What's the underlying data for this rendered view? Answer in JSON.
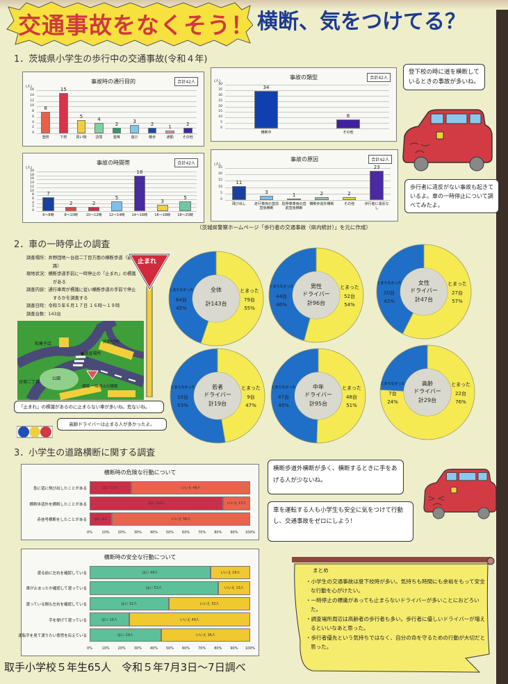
{
  "header": {
    "title": "交通事故をなくそう！",
    "subtitle": "横断、気をつけてる？"
  },
  "section1": {
    "heading": "1．茨城県小学生の歩行中の交通事故(令和４年)",
    "source": "（茨城県警察ホームページ「歩行者の交通事故（県内統計）」を元に作成）"
  },
  "section2": {
    "heading": "2．車の一時停止の調査",
    "info": [
      "調査場所：井野団地～台宿二丁目方面の横断歩道（通学路）",
      "現地状況：横断歩道手前に一時停止の「止まれ」の標識がある",
      "調査内容：通行車両が標識に従い横断歩道の手前で停止するかを調査する",
      "調査日時：令和５年６月１７日 １６時～１９時",
      "調査台数：143台"
    ],
    "sign": "止まれ",
    "map": {
      "labels": [
        "和菓子店",
        "井野団地",
        "●調査場所",
        "公園",
        "台宿二丁目",
        "標識 一時停止の標識"
      ]
    }
  },
  "section3": {
    "heading": "3．小学生の道路横断に関する調査"
  },
  "bubbles": {
    "b1": "登下校の時に道を横断しているときの事故が多いね。",
    "b2": "歩行者に違反がない事故も起きているよ。車の一時停止について調べてみたよ。",
    "b3": "「止まれ」の標識があるのに止まらない車が多いね。危ないね。",
    "b4": "高齢ドライバーは止まる人が多かったよ。",
    "b5": "横断歩道外横断が多く、横断するときに手をあげる人が少ないね。",
    "b6": "車を運転する人も小学生も安全に気をつけて行動し、交通事故をゼロにしよう！"
  },
  "summary": {
    "title": "まとめ",
    "items": [
      "・小学生の交通事故は登下校時が多い。気持ちも時間にも余裕をもって安全な行動を心がけたい。",
      "・一時停止の標識があっても止まらないドライバーが多いことにおどろいた。",
      "・調査場所周辺は高齢者の歩行者も多い。歩行者に優しいドライバーが増えるといいなあと思った。",
      "・歩行者優先という気持ちではなく、自分の命を守るための行動が大切だと思った。"
    ]
  },
  "footer": "取手小学校５年生65人　令和５年7月3日～7日調べ",
  "colors": {
    "title_red": "#cf3a3c",
    "title_blue": "#1d3b90",
    "stopped": "#f5ea52",
    "not_stopped": "#1f6fc8"
  },
  "chart_data": [
    {
      "type": "bar",
      "title": "事故時の通行目的",
      "total": "合計42人",
      "ylabel": "(人)",
      "ylim": [
        0,
        16
      ],
      "ytick": 2,
      "grid": true,
      "categories": [
        "登校",
        "下校",
        "買い物",
        "訪問",
        "塾等",
        "遊び",
        "散歩",
        "通勤",
        "その他"
      ],
      "values": [
        8,
        15,
        5,
        4,
        2,
        3,
        2,
        1,
        2
      ],
      "colors": [
        "#e8604a",
        "#d8344a",
        "#f0d040",
        "#7fd0a0",
        "#2a9a6a",
        "#7ec8ec",
        "#1a4aa8",
        "#e890b8",
        "#3a2a9a"
      ]
    },
    {
      "type": "bar",
      "title": "事故の類型",
      "total": "合計42人",
      "ylabel": "(人)",
      "ylim": [
        0,
        40
      ],
      "ytick": 5,
      "grid": true,
      "categories": [
        "横断中",
        "その他"
      ],
      "values": [
        34,
        8
      ],
      "colors": [
        "#1040b0",
        "#4020a0"
      ]
    },
    {
      "type": "bar",
      "title": "事故の時間帯",
      "total": "合計42人",
      "ylabel": "(人)",
      "ylim": [
        0,
        20
      ],
      "ytick": 2,
      "grid": true,
      "categories": [
        "6～8時",
        "8～10時",
        "10～12時",
        "12～14時",
        "14～16時",
        "16～18時",
        "18～20時"
      ],
      "values": [
        7,
        2,
        2,
        5,
        18,
        3,
        5
      ],
      "colors": [
        "#1a40a0",
        "#d84a4a",
        "#c8304a",
        "#7ec0ec",
        "#4a2aa0",
        "#f0d040",
        "#70c8a0"
      ]
    },
    {
      "type": "bar",
      "title": "事故の原因",
      "total": "合計42人",
      "ylabel": "(人)",
      "ylim": [
        0,
        25
      ],
      "ytick": 5,
      "grid": true,
      "categories": [
        "飛び出し",
        "走行車両の直前直後横断",
        "駐停車車両の直前直後横断",
        "横断歩道外横断",
        "その他",
        "歩行者に違反なし"
      ],
      "values": [
        11,
        3,
        1,
        2,
        2,
        23
      ],
      "colors": [
        "#1a40a0",
        "#7ec0ec",
        "#e86a5a",
        "#7ed0a0",
        "#f0d040",
        "#4a2aa0"
      ]
    },
    {
      "type": "pie",
      "title": "全体",
      "total": "計143台",
      "segments": [
        {
          "label": "とまった",
          "count": "79台",
          "value": 79,
          "percent": "55%"
        },
        {
          "label": "とまらなかった",
          "count": "64台",
          "value": 64,
          "percent": "45%"
        }
      ]
    },
    {
      "type": "pie",
      "title": "男性\nドライバー",
      "total": "計96台",
      "segments": [
        {
          "label": "とまった",
          "count": "52台",
          "value": 52,
          "percent": "54%"
        },
        {
          "label": "とまらなかった",
          "count": "44台",
          "value": 44,
          "percent": "46%"
        }
      ]
    },
    {
      "type": "pie",
      "title": "女性\nドライバー",
      "total": "計47台",
      "segments": [
        {
          "label": "とまった",
          "count": "27台",
          "value": 27,
          "percent": "57%"
        },
        {
          "label": "とまらなかった",
          "count": "20台",
          "value": 20,
          "percent": "43%"
        }
      ]
    },
    {
      "type": "pie",
      "title": "若者\nドライバー",
      "total": "計19台",
      "segments": [
        {
          "label": "とまった",
          "count": "9台",
          "value": 9,
          "percent": "47%"
        },
        {
          "label": "とまらなかった",
          "count": "10台",
          "value": 10,
          "percent": "53%"
        }
      ]
    },
    {
      "type": "pie",
      "title": "中年\nドライバー",
      "total": "計95台",
      "segments": [
        {
          "label": "とまった",
          "count": "48台",
          "value": 48,
          "percent": "51%"
        },
        {
          "label": "とまらなかった",
          "count": "47台",
          "value": 47,
          "percent": "49%"
        }
      ]
    },
    {
      "type": "pie",
      "title": "高齢\nドライバー",
      "total": "計29台",
      "segments": [
        {
          "label": "とまった",
          "count": "22台",
          "value": 22,
          "percent": "76%"
        },
        {
          "label": "とまらなかった",
          "count": "7台",
          "value": 7,
          "percent": "24%"
        }
      ]
    },
    {
      "type": "bar",
      "orientation": "horizontal",
      "stacked": "percent",
      "title": "横断時の危険な行動について",
      "categories": [
        "急に道に飛び出したことがある",
        "横断歩道外を横断したことがある",
        "赤信号横断をしたことがある"
      ],
      "series": [
        {
          "name": "はい",
          "values": [
            17,
            54,
            9
          ],
          "labels": [
            "はい 17人",
            "はい 54人",
            "はい 9人"
          ],
          "color": "#c8304a"
        },
        {
          "name": "いいえ",
          "values": [
            48,
            11,
            56
          ],
          "labels": [
            "いいえ 48人",
            "いいえ 11人",
            "いいえ 56人"
          ],
          "color": "#e8644c"
        }
      ],
      "xticks": [
        "0%",
        "10%",
        "20%",
        "30%",
        "40%",
        "50%",
        "60%",
        "70%",
        "80%",
        "90%",
        "100%"
      ]
    },
    {
      "type": "bar",
      "orientation": "horizontal",
      "stacked": "percent",
      "title": "横断時の安全な行動について",
      "categories": [
        "渡る前に左右を確認している",
        "車が止まったか確認して渡っている",
        "渡っている間も左右を確認している",
        "手を挙げて渡っている",
        "運転手を見て渡りたい意思を伝えている"
      ],
      "series": [
        {
          "name": "はい",
          "values": [
            49,
            52,
            32,
            16,
            29
          ],
          "labels": [
            "はい 49人",
            "はい 52人",
            "はい 32人",
            "はい 16人",
            "はい 29人"
          ],
          "color": "#5cc09a"
        },
        {
          "name": "いいえ",
          "values": [
            16,
            13,
            33,
            49,
            36
          ],
          "labels": [
            "いいえ 16人",
            "いいえ 13人",
            "いいえ 33人",
            "いいえ 49人",
            "いいえ 36人"
          ],
          "color": "#f0c830"
        }
      ],
      "xticks": [
        "0%",
        "10%",
        "20%",
        "30%",
        "40%",
        "50%",
        "60%",
        "70%",
        "80%",
        "90%",
        "100%"
      ]
    }
  ]
}
